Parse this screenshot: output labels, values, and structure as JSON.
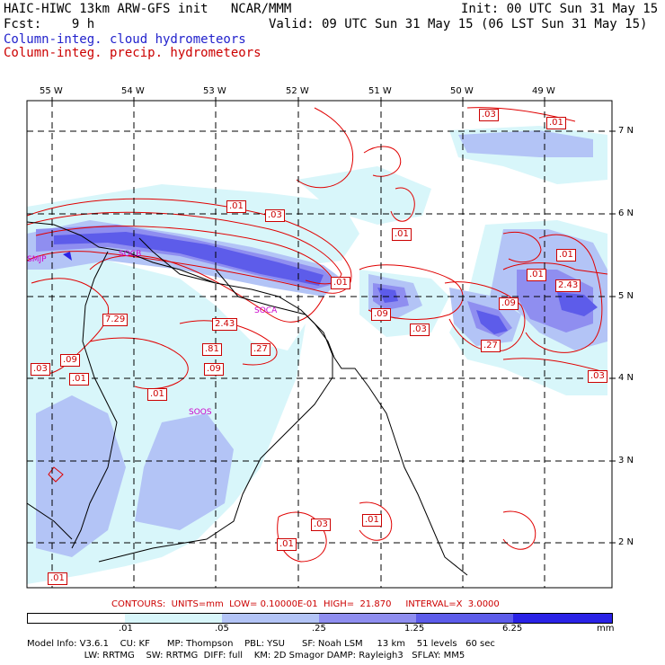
{
  "header": {
    "title": "HAIC-HIWC 13km ARW-GFS init   NCAR/MMM",
    "init": "Init: 00 UTC Sun 31 May 15",
    "fcst": "Fcst:    9 h",
    "valid": "Valid: 09 UTC Sun 31 May 15 (06 LST Sun 31 May 15)",
    "field_cloud": "Column-integ. cloud hydrometeors",
    "field_precip": "Column-integ. precip. hydrometeors"
  },
  "lon_labels": [
    "55 W",
    "54 W",
    "53 W",
    "52 W",
    "51 W",
    "50 W",
    "49 W"
  ],
  "lat_labels": [
    "7 N",
    "6 N",
    "5 N",
    "4 N",
    "3 N",
    "2 N"
  ],
  "contour_labels": [
    ".03",
    ".01",
    ".01",
    ".03",
    ".01",
    ".01",
    "7.29",
    "2.43",
    ".81",
    ".27",
    ".09",
    ".03",
    ".09",
    ".01",
    ".01",
    ".09",
    ".03",
    ".09",
    ".27",
    ".01",
    "2.43",
    ".01",
    ".03",
    ".03",
    ".01",
    ".01",
    ".01"
  ],
  "station_labels": [
    "SMJP",
    "SOCB",
    "SOCA",
    "SOOS"
  ],
  "contours_line": "CONTOURS:  UNITS=mm  LOW= 0.10000E-01  HIGH=  21.870     INTERVAL=X  3.0000",
  "colorbar": {
    "ticks": [
      ".01",
      ".05",
      ".25",
      "1.25",
      "6.25"
    ],
    "units": "mm",
    "colors": [
      "#ffffff",
      "#d8f6fa",
      "#b3c4f6",
      "#8f8ef0",
      "#5d5cea",
      "#2a22e6"
    ]
  },
  "model_info": {
    "line1": "Model Info: V3.6.1    CU: KF      MP: Thompson    PBL: YSU      SF: Noah LSM     13 km    51 levels   60 sec",
    "line2": "                    LW: RRTMG    SW: RRTMG  DIFF: full    KM: 2D Smagor DAMP: Rayleigh3   SFLAY: MM5"
  }
}
